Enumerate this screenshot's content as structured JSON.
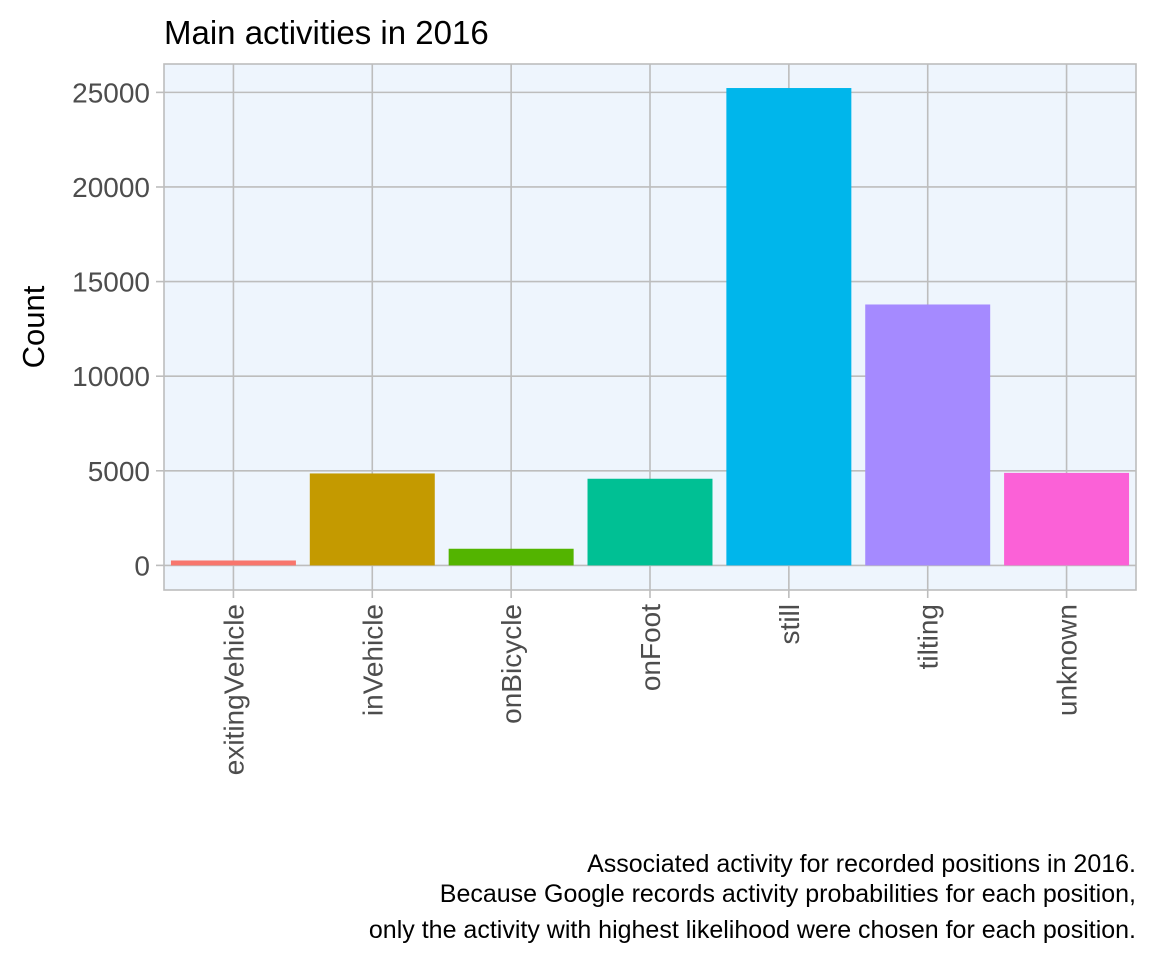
{
  "chart_data": {
    "type": "bar",
    "title": "Main activities in 2016",
    "xlabel": "",
    "ylabel": "Count",
    "categories": [
      "exitingVehicle",
      "inVehicle",
      "onBicycle",
      "onFoot",
      "still",
      "tilting",
      "unknown"
    ],
    "values": [
      260,
      4860,
      880,
      4580,
      25230,
      13790,
      4890
    ],
    "colors": [
      "#F8766D",
      "#C49A00",
      "#53B400",
      "#00C094",
      "#00B6EB",
      "#A58AFF",
      "#FB61D7"
    ],
    "ylim": [
      -1300,
      26500
    ],
    "yticks": [
      0,
      5000,
      10000,
      15000,
      20000,
      25000
    ],
    "grid": true,
    "panel_background": "#EEF5FD",
    "legend": "none",
    "caption_lines": [
      "Associated activity for recorded positions in 2016.",
      "Because Google records activity probabilities for each position,",
      "only the activity with highest likelihood were chosen for each position."
    ]
  }
}
